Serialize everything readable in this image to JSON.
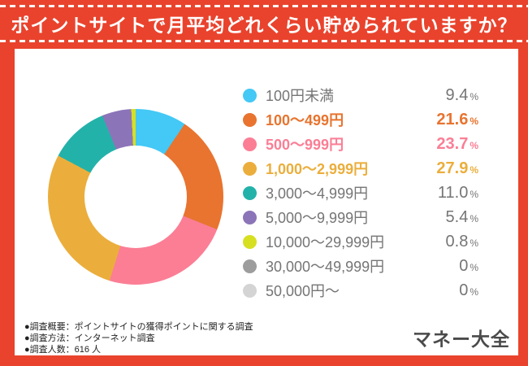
{
  "header": {
    "title": "ポイントサイトで月平均どれくらい貯められていますか？",
    "bg_color": "#E9432D",
    "text_color": "#FFFFFF"
  },
  "chart_data": {
    "type": "pie",
    "subtype": "donut",
    "title": "ポイントサイトで月平均どれくらい貯められていますか？",
    "unit": "%",
    "categories": [
      "100円未満",
      "100〜499円",
      "500〜999円",
      "1,000〜2,999円",
      "3,000〜4,999円",
      "5,000〜9,999円",
      "10,000〜29,999円",
      "30,000〜49,999円",
      "50,000円〜"
    ],
    "values": [
      9.4,
      21.6,
      23.7,
      27.9,
      11.0,
      5.4,
      0.8,
      0,
      0
    ],
    "value_labels": [
      "9.4",
      "21.6",
      "23.7",
      "27.9",
      "11.0",
      "5.4",
      "0.8",
      "0",
      "0"
    ],
    "colors": [
      "#44C8F5",
      "#E8742F",
      "#FB7E95",
      "#EBAE3C",
      "#23B2AA",
      "#8C74B8",
      "#D7DF21",
      "#9D9D9D",
      "#D4D4D4"
    ],
    "emphasized": [
      false,
      true,
      true,
      true,
      false,
      false,
      false,
      false,
      false
    ],
    "start_angle_deg": 0,
    "direction": "clockwise",
    "hole_ratio": 0.58,
    "legend_position": "right",
    "grid": false
  },
  "footer": {
    "notes": [
      "●調査概要：ポイントサイトの獲得ポイントに関する調査",
      "●調査方法：インターネット調査",
      "●調査人数：616 人"
    ],
    "logo": "マネー大全",
    "logo_color": "#4A4A4A"
  }
}
